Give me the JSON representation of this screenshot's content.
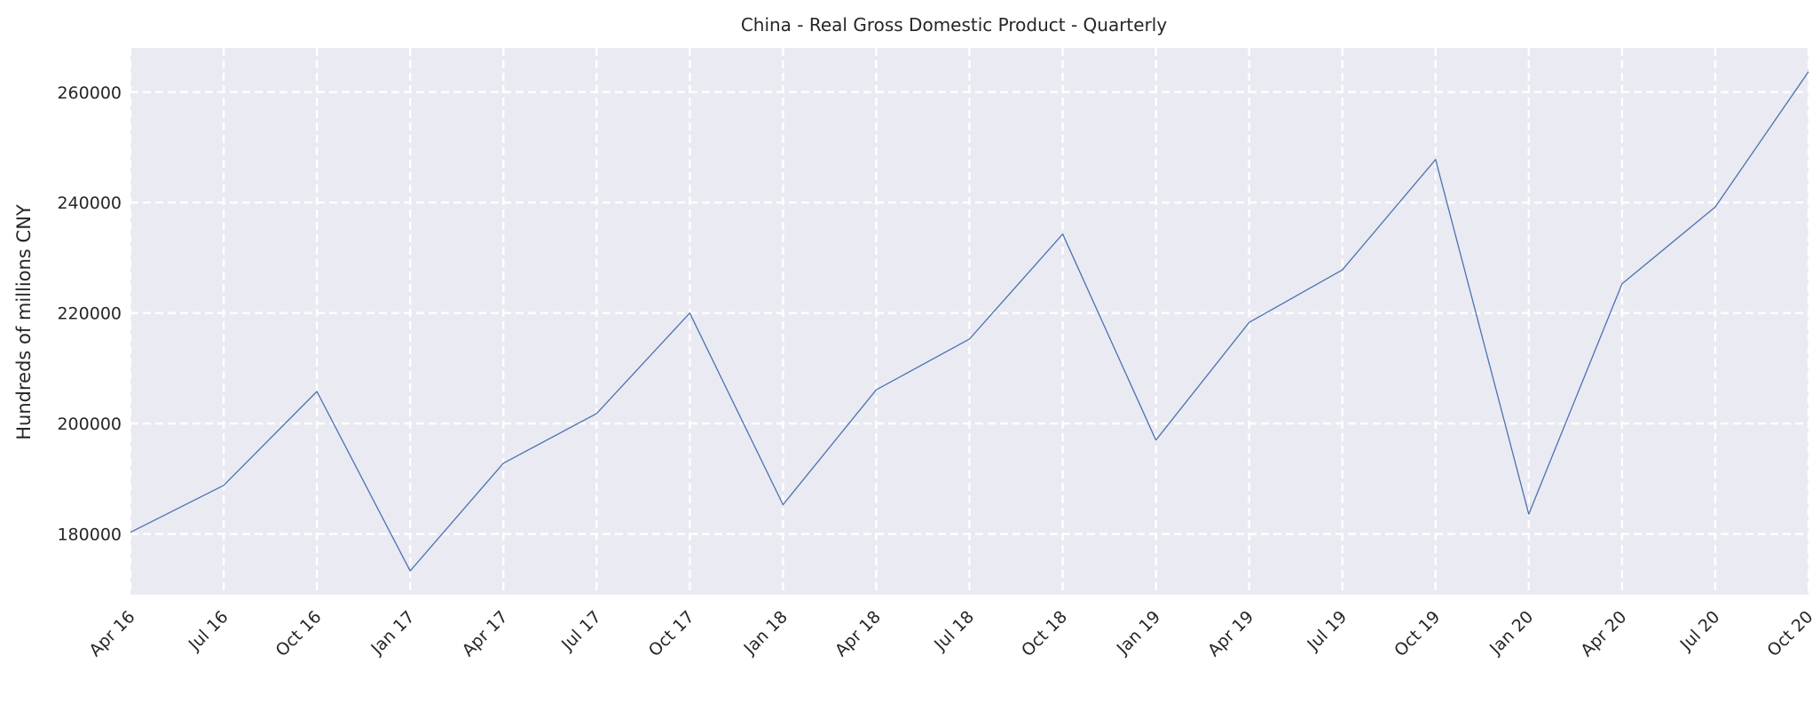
{
  "chart_data": {
    "type": "line",
    "title": "China - Real Gross Domestic Product - Quarterly",
    "xlabel": "",
    "ylabel": "Hundreds of millions CNY",
    "x": [
      "Apr 16",
      "Jul 16",
      "Oct 16",
      "Jan 17",
      "Apr 17",
      "Jul 17",
      "Oct 17",
      "Jan 18",
      "Apr 18",
      "Jul 18",
      "Oct 18",
      "Jan 19",
      "Apr 19",
      "Jul 19",
      "Oct 19",
      "Jan 20",
      "Apr 20",
      "Jul 20",
      "Oct 20"
    ],
    "series": [
      {
        "values": [
          180300,
          188800,
          205800,
          173300,
          192800,
          201800,
          220000,
          185300,
          206100,
          215300,
          234300,
          197000,
          218300,
          227800,
          247800,
          183600,
          225300,
          239200,
          263700
        ]
      }
    ],
    "yticks": [
      180000,
      200000,
      220000,
      240000,
      260000
    ],
    "ylim": [
      169000,
      268000
    ],
    "grid": true,
    "colors": {
      "background": "#eaeaf2",
      "grid": "#ffffff",
      "line": "#4c72b0"
    }
  }
}
